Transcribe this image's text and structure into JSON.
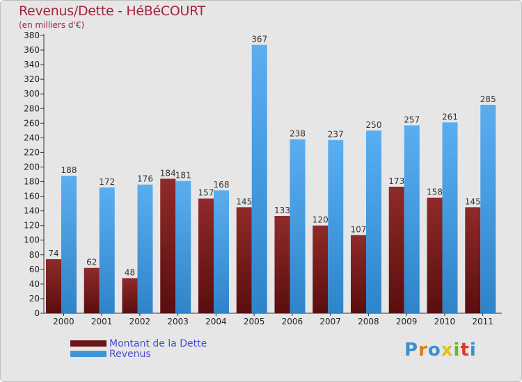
{
  "chart_data": {
    "type": "bar",
    "title": "Revenus/Dette - HéBéCOURT",
    "subtitle": "(en milliers d'€)",
    "categories": [
      "2000",
      "2001",
      "2002",
      "2003",
      "2004",
      "2005",
      "2006",
      "2007",
      "2008",
      "2009",
      "2010",
      "2011"
    ],
    "series": [
      {
        "name": "Montant de la Dette",
        "color": "#7a1f1f",
        "values": [
          74,
          62,
          48,
          184,
          157,
          145,
          133,
          120,
          107,
          173,
          158,
          145
        ]
      },
      {
        "name": "Revenus",
        "color": "#4aa3e6",
        "values": [
          188,
          172,
          176,
          181,
          168,
          367,
          238,
          237,
          250,
          257,
          261,
          285
        ]
      }
    ],
    "ylim": [
      0,
      380
    ],
    "ytick_step": 20,
    "grid": false,
    "legend_position": "bottom-left"
  },
  "logo": {
    "text": "Proxiti"
  }
}
